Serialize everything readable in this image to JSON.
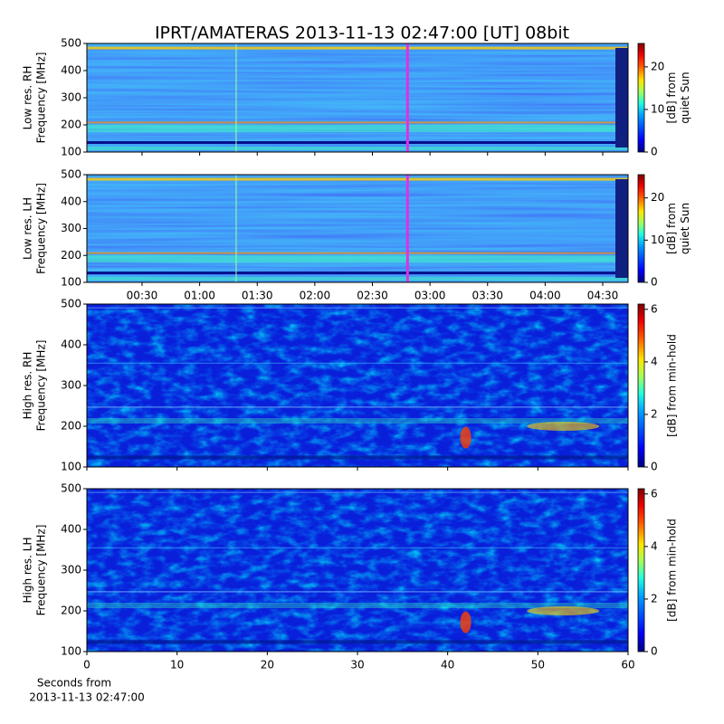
{
  "figure": {
    "title": "IPRT/AMATERAS 2013-11-13 02:47:00 [UT]   08bit",
    "xlabel": [
      "Seconds from",
      "2013-11-13 02:47:00"
    ]
  },
  "chart_data": [
    {
      "type": "heatmap",
      "ylabel": [
        "Low res. RH",
        "Frequency [MHz]"
      ],
      "ylim": [
        100,
        500
      ],
      "yticks": [
        100,
        200,
        300,
        400,
        500
      ],
      "xlim": [
        1.25,
        283.2
      ],
      "xtick_labels": false,
      "xticks": [
        {
          "value": 30,
          "label": "00:30"
        },
        {
          "value": 60,
          "label": "01:00"
        },
        {
          "value": 90,
          "label": "01:30"
        },
        {
          "value": 120,
          "label": "02:00"
        },
        {
          "value": 150,
          "label": "02:30"
        },
        {
          "value": 180,
          "label": "03:00"
        },
        {
          "value": 210,
          "label": "03:30"
        },
        {
          "value": 240,
          "label": "04:00"
        },
        {
          "value": 270,
          "label": "04:30"
        }
      ],
      "clim": [
        0,
        25.5
      ],
      "cticks": [
        0,
        10,
        20
      ],
      "clabel": [
        "[dB] from",
        "quiet Sun"
      ]
    },
    {
      "type": "heatmap",
      "ylabel": [
        "Low res. LH",
        "Frequency [MHz]"
      ],
      "ylim": [
        100,
        500
      ],
      "yticks": [
        100,
        200,
        300,
        400,
        500
      ],
      "xlim": [
        1.25,
        283.2
      ],
      "xtick_labels": true,
      "xticks": [
        {
          "value": 30,
          "label": "00:30"
        },
        {
          "value": 60,
          "label": "01:00"
        },
        {
          "value": 90,
          "label": "01:30"
        },
        {
          "value": 120,
          "label": "02:00"
        },
        {
          "value": 150,
          "label": "02:30"
        },
        {
          "value": 180,
          "label": "03:00"
        },
        {
          "value": 210,
          "label": "03:30"
        },
        {
          "value": 240,
          "label": "04:00"
        },
        {
          "value": 270,
          "label": "04:30"
        }
      ],
      "clim": [
        0,
        25.5
      ],
      "cticks": [
        0,
        10,
        20
      ],
      "clabel": [
        "[dB] from",
        "quiet Sun"
      ]
    },
    {
      "type": "heatmap",
      "ylabel": [
        "High res. RH",
        "Frequency [MHz]"
      ],
      "ylim": [
        100,
        500
      ],
      "yticks": [
        100,
        200,
        300,
        400,
        500
      ],
      "xlim": [
        0,
        60
      ],
      "xticks": [
        0,
        10,
        20,
        30,
        40,
        50,
        60
      ],
      "xtick_labels": false,
      "clim": [
        0,
        6.2
      ],
      "cticks": [
        0,
        2,
        4,
        6
      ],
      "clabel": [
        "[dB] from min-hold"
      ]
    },
    {
      "type": "heatmap",
      "ylabel": [
        "High res. LH",
        "Frequency [MHz]"
      ],
      "ylim": [
        100,
        500
      ],
      "yticks": [
        100,
        200,
        300,
        400,
        500
      ],
      "xlim": [
        0,
        60
      ],
      "xticks": [
        0,
        10,
        20,
        30,
        40,
        50,
        60
      ],
      "xtick_labels": true,
      "clim": [
        0,
        6.2
      ],
      "cticks": [
        0,
        2,
        4,
        6
      ],
      "clabel": [
        "[dB] from min-hold"
      ]
    }
  ]
}
